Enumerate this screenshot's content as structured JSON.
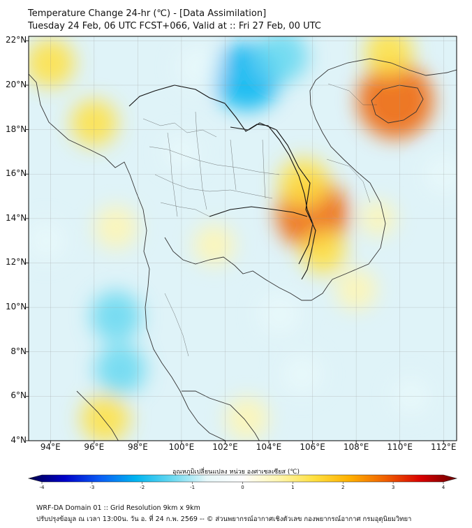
{
  "header": {
    "title_line1": "Temperature Change 24-hr (℃) - [Data Assimilation]",
    "title_line2": "Tuesday 24 Feb, 06 UTC FCST+066, Valid at :: Fri 27 Feb, 00 UTC"
  },
  "map": {
    "lat_labels": [
      "22°N",
      "20°N",
      "18°N",
      "16°N",
      "14°N",
      "12°N",
      "10°N",
      "8°N",
      "6°N",
      "4°N"
    ],
    "lon_labels": [
      "94°E",
      "96°E",
      "98°E",
      "100°E",
      "102°E",
      "104°E",
      "106°E",
      "108°E",
      "110°E",
      "112°E"
    ],
    "lat_values": [
      22,
      20,
      18,
      16,
      14,
      12,
      10,
      8,
      6,
      4
    ],
    "lon_values": [
      94,
      96,
      98,
      100,
      102,
      104,
      106,
      108,
      110,
      112
    ],
    "lon_range": [
      93,
      112.6
    ],
    "lat_range": [
      4,
      22.2
    ],
    "field_anomalies": [
      {
        "lon": 103.0,
        "lat": 20.4,
        "value": -2.2
      },
      {
        "lon": 104.6,
        "lat": 21.3,
        "value": -1.4
      },
      {
        "lon": 100.8,
        "lat": 20.8,
        "value": -1.0
      },
      {
        "lon": 109.8,
        "lat": 19.3,
        "value": 2.6
      },
      {
        "lon": 106.0,
        "lat": 14.2,
        "value": 2.4
      },
      {
        "lon": 105.6,
        "lat": 15.6,
        "value": 1.3
      },
      {
        "lon": 106.5,
        "lat": 12.5,
        "value": 1.0
      },
      {
        "lon": 94.0,
        "lat": 21.0,
        "value": 1.2
      },
      {
        "lon": 96.0,
        "lat": 18.3,
        "value": 1.1
      },
      {
        "lon": 109.5,
        "lat": 21.5,
        "value": 1.2
      },
      {
        "lon": 97.0,
        "lat": 13.6,
        "value": 0.9
      },
      {
        "lon": 101.5,
        "lat": 12.8,
        "value": 0.8
      },
      {
        "lon": 108.0,
        "lat": 10.8,
        "value": 0.8
      },
      {
        "lon": 104.5,
        "lat": 9.7,
        "value": -1.0
      },
      {
        "lon": 97.0,
        "lat": 9.6,
        "value": -1.3
      },
      {
        "lon": 97.2,
        "lat": 7.2,
        "value": -1.3
      },
      {
        "lon": 105.5,
        "lat": 7.0,
        "value": -0.9
      },
      {
        "lon": 96.5,
        "lat": 5.0,
        "value": 1.2
      },
      {
        "lon": 103.0,
        "lat": 5.0,
        "value": 0.9
      },
      {
        "lon": 93.8,
        "lat": 13.0,
        "value": -0.8
      },
      {
        "lon": 112.0,
        "lat": 16.0,
        "value": -0.8
      },
      {
        "lon": 110.5,
        "lat": 6.0,
        "value": -0.7
      },
      {
        "lon": 109.0,
        "lat": 14.0,
        "value": 0.5
      },
      {
        "lon": 100.0,
        "lat": 17.0,
        "value": -0.6
      }
    ]
  },
  "colorbar": {
    "title": "อุณหภูมิเปลี่ยนแปลง หน่วย องศาเซลเซียส (℃)",
    "min": -4,
    "max": 4,
    "ticks": [
      "-4",
      "-3",
      "-2",
      "-1",
      "0",
      "1",
      "2",
      "3",
      "4"
    ],
    "tick_values": [
      -4,
      -3,
      -2,
      -1,
      0,
      1,
      2,
      3,
      4
    ],
    "colors": [
      "#00004a",
      "#0000c8",
      "#0a5cf5",
      "#00b4f0",
      "#66d8f0",
      "#e8f8fa",
      "#ffffff",
      "#fff6b0",
      "#ffe040",
      "#ffb000",
      "#f06000",
      "#d80000",
      "#6a0000"
    ]
  },
  "footer": {
    "line1": "WRF-DA Domain 01 :: Grid Resolution 9km x 9km",
    "line2": "ปรับปรุงข้อมูล ณ เวลา 13:00น. วัน อ. ที่ 24 ก.พ. 2569 -- © ส่วนพยากรณ์อากาศเชิงตัวเลข กองพยากรณ์อากาศ กรมอุตุนิยมวิทยา"
  }
}
